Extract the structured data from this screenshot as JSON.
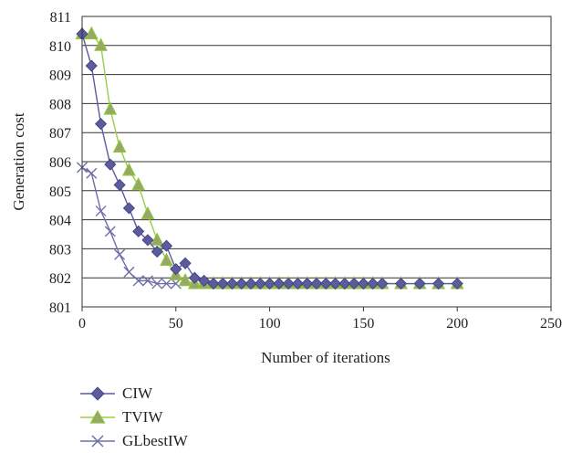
{
  "chart_data": {
    "type": "line",
    "title": "",
    "xlabel": "Number of iterations",
    "ylabel": "Generation cost",
    "xlim": [
      0,
      250
    ],
    "ylim": [
      801,
      811
    ],
    "xticks": [
      0,
      50,
      100,
      150,
      200,
      250
    ],
    "yticks": [
      801,
      802,
      803,
      804,
      805,
      806,
      807,
      808,
      809,
      810,
      811
    ],
    "grid": "horizontal",
    "legend_position": "bottom-left",
    "series": [
      {
        "name": "CIW",
        "color": "#5b5b9e",
        "marker": "diamond",
        "points": [
          [
            0,
            810.4
          ],
          [
            5,
            809.3
          ],
          [
            10,
            807.3
          ],
          [
            15,
            805.9
          ],
          [
            20,
            805.2
          ],
          [
            25,
            804.4
          ],
          [
            30,
            803.6
          ],
          [
            35,
            803.3
          ],
          [
            40,
            802.9
          ],
          [
            45,
            803.1
          ],
          [
            50,
            802.3
          ],
          [
            55,
            802.5
          ],
          [
            60,
            802.0
          ],
          [
            65,
            801.9
          ],
          [
            70,
            801.8
          ],
          [
            75,
            801.8
          ],
          [
            80,
            801.8
          ],
          [
            85,
            801.8
          ],
          [
            90,
            801.8
          ],
          [
            95,
            801.8
          ],
          [
            100,
            801.8
          ],
          [
            105,
            801.8
          ],
          [
            110,
            801.8
          ],
          [
            115,
            801.8
          ],
          [
            120,
            801.8
          ],
          [
            125,
            801.8
          ],
          [
            130,
            801.8
          ],
          [
            135,
            801.8
          ],
          [
            140,
            801.8
          ],
          [
            145,
            801.8
          ],
          [
            150,
            801.8
          ],
          [
            155,
            801.8
          ],
          [
            160,
            801.8
          ],
          [
            170,
            801.8
          ],
          [
            180,
            801.8
          ],
          [
            190,
            801.8
          ],
          [
            200,
            801.8
          ]
        ]
      },
      {
        "name": "TVIW",
        "color": "#9acd4a",
        "marker": "triangle",
        "points": [
          [
            0,
            810.4
          ],
          [
            5,
            810.4
          ],
          [
            10,
            810.0
          ],
          [
            15,
            807.8
          ],
          [
            20,
            806.5
          ],
          [
            25,
            805.7
          ],
          [
            30,
            805.2
          ],
          [
            35,
            804.2
          ],
          [
            40,
            803.3
          ],
          [
            45,
            802.6
          ],
          [
            50,
            802.1
          ],
          [
            55,
            801.9
          ],
          [
            60,
            801.8
          ],
          [
            65,
            801.8
          ],
          [
            70,
            801.8
          ],
          [
            75,
            801.8
          ],
          [
            80,
            801.8
          ],
          [
            85,
            801.8
          ],
          [
            90,
            801.8
          ],
          [
            95,
            801.8
          ],
          [
            100,
            801.8
          ],
          [
            105,
            801.8
          ],
          [
            110,
            801.8
          ],
          [
            115,
            801.8
          ],
          [
            120,
            801.8
          ],
          [
            125,
            801.8
          ],
          [
            130,
            801.8
          ],
          [
            135,
            801.8
          ],
          [
            140,
            801.8
          ],
          [
            145,
            801.8
          ],
          [
            150,
            801.8
          ],
          [
            155,
            801.8
          ],
          [
            160,
            801.8
          ],
          [
            170,
            801.8
          ],
          [
            180,
            801.8
          ],
          [
            190,
            801.8
          ],
          [
            200,
            801.8
          ]
        ]
      },
      {
        "name": "GLbestIW",
        "color": "#6e6ea8",
        "marker": "x",
        "points": [
          [
            0,
            805.8
          ],
          [
            5,
            805.6
          ],
          [
            10,
            804.3
          ],
          [
            15,
            803.6
          ],
          [
            20,
            802.8
          ],
          [
            25,
            802.2
          ],
          [
            30,
            801.9
          ],
          [
            35,
            801.9
          ],
          [
            40,
            801.8
          ],
          [
            45,
            801.8
          ],
          [
            50,
            801.8
          ]
        ]
      }
    ]
  },
  "legend": {
    "items": [
      {
        "label": "CIW",
        "marker": "diamond"
      },
      {
        "label": "TVIW",
        "marker": "triangle"
      },
      {
        "label": "GLbestIW",
        "marker": "x"
      }
    ]
  }
}
